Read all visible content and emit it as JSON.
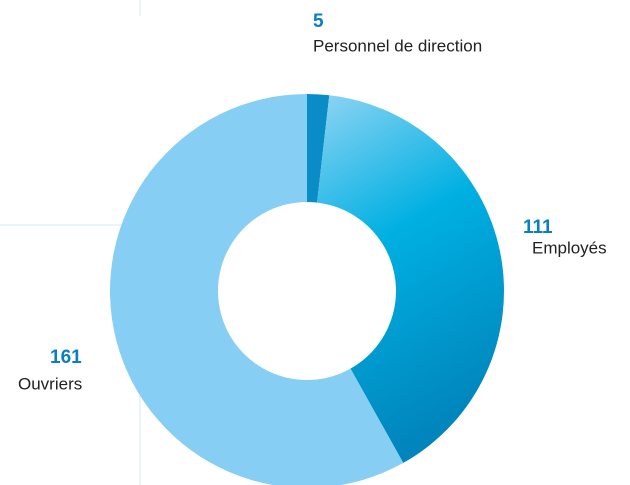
{
  "chart_data": {
    "type": "donut",
    "categories": [
      "Personnel de direction",
      "Employés",
      "Ouvriers"
    ],
    "values": [
      5,
      111,
      161
    ],
    "colors": [
      "#0a8cc6",
      "#10a9de",
      "#86cef3"
    ],
    "label_color": "#0a7fbf"
  }
}
